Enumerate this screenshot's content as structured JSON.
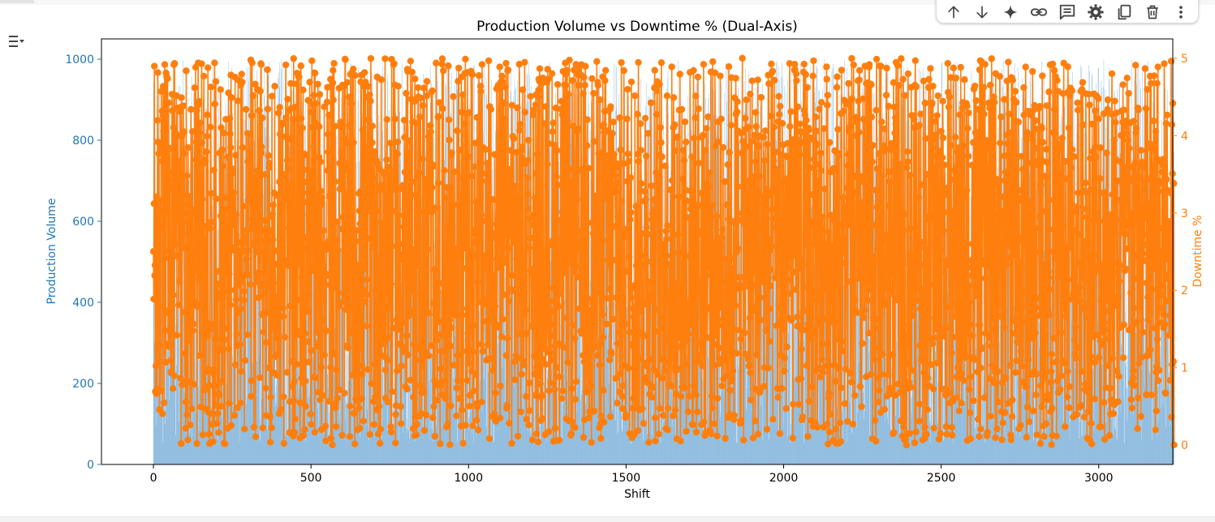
{
  "toolbar": {
    "icons": [
      "arrow-up-icon",
      "arrow-down-icon",
      "sparkle-icon",
      "link-icon",
      "comment-icon",
      "gear-icon",
      "copy-icon",
      "trash-icon",
      "more-vert-icon"
    ]
  },
  "colors": {
    "bar": "#6fa8d4",
    "line": "#ff7f0e",
    "left_axis": "#1f77b4",
    "right_axis": "#ff7f0e"
  },
  "chart_data": {
    "type": "bar+line",
    "title": "Production Volume vs Downtime % (Dual-Axis)",
    "xlabel": "Shift",
    "ylabel_left": "Production Volume",
    "ylabel_right": "Downtime %",
    "xlim": [
      -165,
      3235
    ],
    "ylim_left": [
      0,
      1050
    ],
    "ylim_right": [
      -0.25,
      5.25
    ],
    "xticks": [
      0,
      500,
      1000,
      1500,
      2000,
      2500,
      3000
    ],
    "yticks_left": [
      0,
      200,
      400,
      600,
      800,
      1000
    ],
    "yticks_right": [
      0,
      1,
      2,
      3,
      4,
      5
    ],
    "n_shifts": 3240,
    "grid": false,
    "series": [
      {
        "name": "Production Volume",
        "type": "bar",
        "axis": "left",
        "value_range": [
          50,
          1000
        ],
        "distribution": "uniform random per shift"
      },
      {
        "name": "Downtime %",
        "type": "line",
        "axis": "right",
        "marker": "circle",
        "value_range": [
          0,
          5
        ],
        "distribution": "uniform random per shift"
      }
    ]
  }
}
